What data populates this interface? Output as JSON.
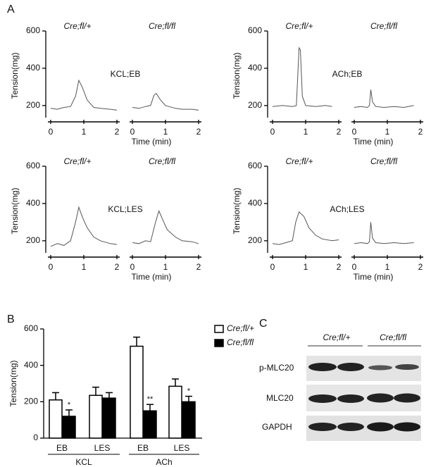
{
  "panels": [
    "A",
    "B",
    "C"
  ],
  "chart_data": [
    {
      "type": "line",
      "title": "KCL;EB",
      "ylabel": "Tension(mg)",
      "xlabel": "Time (min)",
      "ylim": [
        120,
        600
      ],
      "yticks": [
        200,
        400,
        600
      ],
      "xlim": [
        0,
        2
      ],
      "xticks": [
        0,
        1,
        2
      ],
      "color": "#555555",
      "series": [
        {
          "name": "Cre;fl/+",
          "x": [
            0,
            0.2,
            0.4,
            0.6,
            0.75,
            0.85,
            0.95,
            1.1,
            1.3,
            1.5,
            1.8,
            2.0
          ],
          "values": [
            185,
            180,
            190,
            195,
            250,
            335,
            300,
            230,
            190,
            185,
            180,
            175
          ]
        },
        {
          "name": "Cre;fl/fl",
          "x": [
            0,
            0.2,
            0.4,
            0.55,
            0.65,
            0.72,
            0.85,
            1.0,
            1.3,
            1.5,
            1.8,
            2.0
          ],
          "values": [
            190,
            185,
            195,
            200,
            255,
            265,
            230,
            200,
            185,
            180,
            180,
            175
          ]
        }
      ]
    },
    {
      "type": "line",
      "title": "ACh;EB",
      "ylabel": "Tension(mg)",
      "xlabel": "Time (min)",
      "ylim": [
        120,
        600
      ],
      "yticks": [
        200,
        400,
        600
      ],
      "xlim": [
        0,
        2
      ],
      "xticks": [
        0,
        1,
        2
      ],
      "color": "#555555",
      "series": [
        {
          "name": "Cre;fl/+",
          "x": [
            0,
            0.3,
            0.6,
            0.72,
            0.76,
            0.8,
            0.84,
            0.9,
            1.0,
            1.3,
            1.6,
            1.8
          ],
          "values": [
            195,
            200,
            195,
            200,
            350,
            510,
            500,
            250,
            200,
            195,
            200,
            195
          ]
        },
        {
          "name": "Cre;fl/fl",
          "x": [
            0,
            0.2,
            0.4,
            0.46,
            0.5,
            0.55,
            0.65,
            0.9,
            1.2,
            1.5,
            1.8
          ],
          "values": [
            190,
            195,
            190,
            200,
            285,
            220,
            195,
            190,
            195,
            190,
            200
          ]
        }
      ]
    },
    {
      "type": "line",
      "title": "KCL;LES",
      "ylabel": "Tension(mg)",
      "xlabel": "Time (min)",
      "ylim": [
        120,
        600
      ],
      "yticks": [
        200,
        400,
        600
      ],
      "xlim": [
        0,
        2
      ],
      "xticks": [
        0,
        1,
        2
      ],
      "color": "#555555",
      "series": [
        {
          "name": "Cre;fl/+",
          "x": [
            0,
            0.2,
            0.4,
            0.6,
            0.75,
            0.85,
            0.95,
            1.1,
            1.3,
            1.5,
            1.8,
            2.0
          ],
          "values": [
            170,
            185,
            175,
            200,
            300,
            380,
            330,
            270,
            220,
            200,
            185,
            180
          ]
        },
        {
          "name": "Cre;fl/fl",
          "x": [
            0,
            0.2,
            0.4,
            0.55,
            0.7,
            0.8,
            0.9,
            1.05,
            1.3,
            1.5,
            1.8,
            2.0
          ],
          "values": [
            190,
            185,
            200,
            195,
            300,
            360,
            320,
            260,
            220,
            200,
            195,
            185
          ]
        }
      ]
    },
    {
      "type": "line",
      "title": "ACh;LES",
      "ylabel": "Tension(mg)",
      "xlabel": "Time (min)",
      "ylim": [
        120,
        600
      ],
      "yticks": [
        200,
        400,
        600
      ],
      "xlim": [
        0,
        2
      ],
      "xticks": [
        0,
        1,
        2
      ],
      "color": "#555555",
      "series": [
        {
          "name": "Cre;fl/+",
          "x": [
            0,
            0.2,
            0.4,
            0.6,
            0.7,
            0.8,
            0.95,
            1.1,
            1.3,
            1.5,
            1.8,
            2.0
          ],
          "values": [
            185,
            180,
            190,
            200,
            300,
            355,
            330,
            270,
            230,
            210,
            200,
            205
          ]
        },
        {
          "name": "Cre;fl/fl",
          "x": [
            0,
            0.2,
            0.4,
            0.46,
            0.5,
            0.55,
            0.65,
            0.9,
            1.2,
            1.5,
            1.8
          ],
          "values": [
            185,
            190,
            185,
            195,
            300,
            215,
            190,
            185,
            190,
            185,
            190
          ]
        }
      ]
    },
    {
      "type": "bar",
      "ylabel": "Tension(mg)",
      "categories": [
        "EB",
        "LES",
        "EB",
        "LES"
      ],
      "groups": [
        "KCL",
        "ACh"
      ],
      "ylim": [
        0,
        600
      ],
      "yticks": [
        0,
        200,
        400,
        600
      ],
      "legend": "upper right",
      "series": [
        {
          "name": "Cre;fl/+",
          "color": "#ffffff",
          "values": [
            210,
            235,
            505,
            285
          ],
          "errors": [
            40,
            45,
            50,
            40
          ]
        },
        {
          "name": "Cre;fl/fl",
          "color": "#000000",
          "values": [
            120,
            220,
            150,
            200
          ],
          "errors": [
            35,
            30,
            35,
            30
          ],
          "significance": [
            "*",
            null,
            "**",
            "*"
          ]
        }
      ]
    }
  ],
  "blot": {
    "groups": [
      "Cre;fl/+",
      "Cre;fl/fl"
    ],
    "rows": [
      "p-MLC20",
      "MLC20",
      "GAPDH"
    ]
  }
}
